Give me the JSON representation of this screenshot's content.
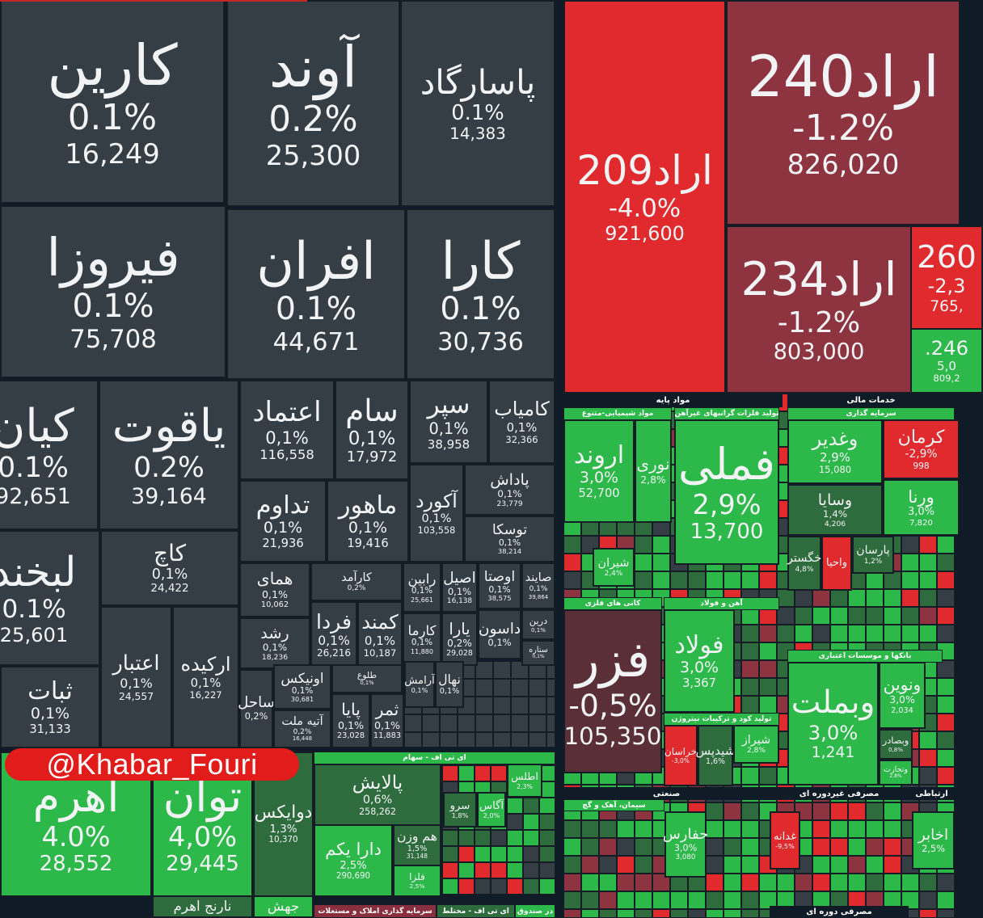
{
  "watermark": "@Khabar_Fouri",
  "colors": {
    "neutral": "#353d45",
    "green": "#2db84a",
    "dkgreen": "#2e6b3d",
    "red": "#e02a2d",
    "maroon": "#8e3440",
    "dkmaroon": "#5a2f38"
  },
  "groups": [
    {
      "label": "مواد پایه",
      "kind": "sector"
    },
    {
      "label": "خدمات مالی",
      "kind": "sector"
    },
    {
      "label": "مواد شیمیایی-متنوع",
      "kind": "sub"
    },
    {
      "label": "تولید فلزات گرانبهای غیرآهن",
      "kind": "sub"
    },
    {
      "label": "سرمایه گذاری",
      "kind": "sub"
    },
    {
      "label": "کانی های فلزی",
      "kind": "sub"
    },
    {
      "label": "آهن و فولاد",
      "kind": "sub"
    },
    {
      "label": "تولید کود و ترکیبات نیتروژن",
      "kind": "sub"
    },
    {
      "label": "بانکها و موسسات اعتباری",
      "kind": "sub"
    },
    {
      "label": "صنعتی",
      "kind": "sector"
    },
    {
      "label": "مصرفی غیردوره ای",
      "kind": "sector"
    },
    {
      "label": "ارتباطی",
      "kind": "sector"
    },
    {
      "label": "سیمان، آهک و گچ",
      "kind": "sub"
    },
    {
      "label": "ای تی اف - سهام",
      "kind": "sub"
    },
    {
      "label": "سرمایه گذاری املاک و مستغلات",
      "kind": "sub maroon"
    },
    {
      "label": "ای تی اف - مختلط",
      "kind": "sub dk"
    },
    {
      "label": "در صندوق",
      "kind": "sub"
    },
    {
      "label": "مصرفی دوره ای",
      "kind": "sector"
    }
  ],
  "tiles": [
    {
      "name": "کارین",
      "pct": "0.1%",
      "value": "16,249",
      "tone": "neutral"
    },
    {
      "name": "آوند",
      "pct": "0.2%",
      "value": "25,300",
      "tone": "neutral"
    },
    {
      "name": "پاسارگاد",
      "pct": "0.1%",
      "value": "14,383",
      "tone": "neutral"
    },
    {
      "name": "فیروزا",
      "pct": "0.1%",
      "value": "75,708",
      "tone": "neutral"
    },
    {
      "name": "افران",
      "pct": "0.1%",
      "value": "44,671",
      "tone": "neutral"
    },
    {
      "name": "کارا",
      "pct": "0.1%",
      "value": "30,736",
      "tone": "neutral"
    },
    {
      "name": "کیان",
      "pct": "0.1%",
      "value": "92,651",
      "tone": "neutral"
    },
    {
      "name": "یاقوت",
      "pct": "0.2%",
      "value": "39,164",
      "tone": "neutral"
    },
    {
      "name": "اعتماد",
      "pct": "0,1%",
      "value": "116,558",
      "tone": "neutral"
    },
    {
      "name": "سام",
      "pct": "0,1%",
      "value": "17,972",
      "tone": "neutral"
    },
    {
      "name": "سپر",
      "pct": "0,1%",
      "value": "38,958",
      "tone": "neutral"
    },
    {
      "name": "کامیاب",
      "pct": "0,1%",
      "value": "32,366",
      "tone": "neutral"
    },
    {
      "name": "تداوم",
      "pct": "0,1%",
      "value": "21,936",
      "tone": "neutral"
    },
    {
      "name": "ماهور",
      "pct": "0,1%",
      "value": "19,416",
      "tone": "neutral"
    },
    {
      "name": "آکورد",
      "pct": "0,1%",
      "value": "103,558",
      "tone": "neutral"
    },
    {
      "name": "پاداش",
      "pct": "0,1%",
      "value": "23,779",
      "tone": "neutral"
    },
    {
      "name": "توسکا",
      "pct": "0,1%",
      "value": "38,214",
      "tone": "neutral"
    },
    {
      "name": "لبخند",
      "pct": "0.1%",
      "value": "25,601",
      "tone": "neutral"
    },
    {
      "name": "کاچ",
      "pct": "0,1%",
      "value": "24,422",
      "tone": "neutral"
    },
    {
      "name": "ثبات",
      "pct": "0,1%",
      "value": "31,133",
      "tone": "neutral"
    },
    {
      "name": "اعتبار",
      "pct": "0,1%",
      "value": "24,557",
      "tone": "neutral"
    },
    {
      "name": "ارکیده",
      "pct": "0,1%",
      "value": "16,227",
      "tone": "neutral"
    },
    {
      "name": "همای",
      "pct": "0,1%",
      "value": "10,062",
      "tone": "neutral"
    },
    {
      "name": "کارآمد",
      "pct": "0,2%",
      "value": "",
      "tone": "neutral"
    },
    {
      "name": "رابین",
      "pct": "0,1%",
      "value": "25,661",
      "tone": "neutral"
    },
    {
      "name": "اصیل",
      "pct": "0,1%",
      "value": "16,138",
      "tone": "neutral"
    },
    {
      "name": "اوصتا",
      "pct": "0,1%",
      "value": "38,575",
      "tone": "neutral"
    },
    {
      "name": "صایند",
      "pct": "0,1%",
      "value": "39,864",
      "tone": "neutral"
    },
    {
      "name": "رشد",
      "pct": "0,1%",
      "value": "18,236",
      "tone": "neutral"
    },
    {
      "name": "فردا",
      "pct": "0,1%",
      "value": "26,216",
      "tone": "neutral"
    },
    {
      "name": "کمند",
      "pct": "0,1%",
      "value": "10,187",
      "tone": "neutral"
    },
    {
      "name": "کارما",
      "pct": "0,1%",
      "value": "11,880",
      "tone": "neutral"
    },
    {
      "name": "یارا",
      "pct": "0,2%",
      "value": "29,028",
      "tone": "neutral"
    },
    {
      "name": "داسون",
      "pct": "0,1%",
      "value": "",
      "tone": "neutral"
    },
    {
      "name": "درین",
      "pct": "0,1%",
      "value": "",
      "tone": "neutral"
    },
    {
      "name": "ستاره",
      "pct": "0,1%",
      "value": "",
      "tone": "neutral"
    },
    {
      "name": "ساحل",
      "pct": "0,2%",
      "value": "",
      "tone": "neutral"
    },
    {
      "name": "اونیکس",
      "pct": "0,1%",
      "value": "30,681",
      "tone": "neutral"
    },
    {
      "name": "طلوع",
      "pct": "0,1%",
      "value": "",
      "tone": "neutral"
    },
    {
      "name": "آتیه ملت",
      "pct": "0,2%",
      "value": "16,448",
      "tone": "neutral"
    },
    {
      "name": "پایا",
      "pct": "0,1%",
      "value": "23,028",
      "tone": "neutral"
    },
    {
      "name": "ثمر",
      "pct": "0,1%",
      "value": "11,883",
      "tone": "neutral"
    },
    {
      "name": "آرامش",
      "pct": "0,1%",
      "value": "",
      "tone": "neutral"
    },
    {
      "name": "نهال",
      "pct": "0,1%",
      "value": "",
      "tone": "neutral"
    },
    {
      "name": "اهرم",
      "pct": "4.0%",
      "value": "28,552",
      "tone": "green"
    },
    {
      "name": "توان",
      "pct": "4,0%",
      "value": "29,445",
      "tone": "green"
    },
    {
      "name": "دوایکس",
      "pct": "1,3%",
      "value": "10,370",
      "tone": "dkgreen"
    },
    {
      "name": "نارنج اهرم",
      "pct": "",
      "value": "",
      "tone": "dkgreen"
    },
    {
      "name": "جهش",
      "pct": "",
      "value": "",
      "tone": "green"
    },
    {
      "name": "پالایش",
      "pct": "0,6%",
      "value": "258,262",
      "tone": "dkgreen"
    },
    {
      "name": "دارا یکم",
      "pct": "2,5%",
      "value": "290,690",
      "tone": "green"
    },
    {
      "name": "هم وزن",
      "pct": "1,5%",
      "value": "31,148",
      "tone": "dkgreen"
    },
    {
      "name": "فلزا",
      "pct": "2,5%",
      "value": "",
      "tone": "green"
    },
    {
      "name": "اطلس",
      "pct": "2,3%",
      "value": "",
      "tone": "green"
    },
    {
      "name": "آگاس",
      "pct": "2,0%",
      "value": "",
      "tone": "green"
    },
    {
      "name": "سرو",
      "pct": "1,8%",
      "value": "",
      "tone": "dkgreen"
    },
    {
      "name": "اراد209",
      "pct": "-4.0%",
      "value": "921,600",
      "tone": "red"
    },
    {
      "name": "اراد240",
      "pct": "-1.2%",
      "value": "826,020",
      "tone": "maroon"
    },
    {
      "name": "اراد234",
      "pct": "-1.2%",
      "value": "803,000",
      "tone": "maroon"
    },
    {
      "name": "260",
      "pct": "-2,3",
      "value": "765,",
      "tone": "red"
    },
    {
      "name": "246.",
      "pct": "5,0",
      "value": "809,2",
      "tone": "green"
    },
    {
      "name": "اروند",
      "pct": "3,0%",
      "value": "52,700",
      "tone": "green"
    },
    {
      "name": "نوری",
      "pct": "2,8%",
      "value": "",
      "tone": "green"
    },
    {
      "name": "فملی",
      "pct": "2,9%",
      "value": "13,700",
      "tone": "green"
    },
    {
      "name": "وغدیر",
      "pct": "2,9%",
      "value": "15,080",
      "tone": "green"
    },
    {
      "name": "کرمان",
      "pct": "-2,9%",
      "value": "998",
      "tone": "red"
    },
    {
      "name": "وسایا",
      "pct": "1,4%",
      "value": "4,206",
      "tone": "dkgreen"
    },
    {
      "name": "ورنا",
      "pct": "3,0%",
      "value": "7,820",
      "tone": "green"
    },
    {
      "name": "خگستر",
      "pct": "4,8%",
      "value": "",
      "tone": "dkgreen"
    },
    {
      "name": "واحیا",
      "pct": "",
      "value": "",
      "tone": "red"
    },
    {
      "name": "پارسان",
      "pct": "1,2%",
      "value": "",
      "tone": "dkgreen"
    },
    {
      "name": "فزر",
      "pct": "-0,5%",
      "value": "105,350",
      "tone": "dkmaroon"
    },
    {
      "name": "فولاد",
      "pct": "3,0%",
      "value": "3,367",
      "tone": "green"
    },
    {
      "name": "خراسان",
      "pct": "-3,0%",
      "value": "",
      "tone": "red"
    },
    {
      "name": "شیدپس",
      "pct": "1,6%",
      "value": "",
      "tone": "dkgreen"
    },
    {
      "name": "شیراز",
      "pct": "2,8%",
      "value": "",
      "tone": "green"
    },
    {
      "name": "وبملت",
      "pct": "3,0%",
      "value": "1,241",
      "tone": "green"
    },
    {
      "name": "ونوین",
      "pct": "3,0%",
      "value": "2,034",
      "tone": "green"
    },
    {
      "name": "وبصادر",
      "pct": "0,8%",
      "value": "",
      "tone": "dkgreen"
    },
    {
      "name": "وتجارت",
      "pct": "2,8%",
      "value": "",
      "tone": "green"
    },
    {
      "name": "شیران",
      "pct": "2,4%",
      "value": "",
      "tone": "green"
    },
    {
      "name": "حفارس",
      "pct": "3,0%",
      "value": "3,080",
      "tone": "green"
    },
    {
      "name": "اخابر",
      "pct": "2,5%",
      "value": "",
      "tone": "green"
    },
    {
      "name": "غدانه",
      "pct": "-9,5%",
      "value": "",
      "tone": "red"
    }
  ]
}
